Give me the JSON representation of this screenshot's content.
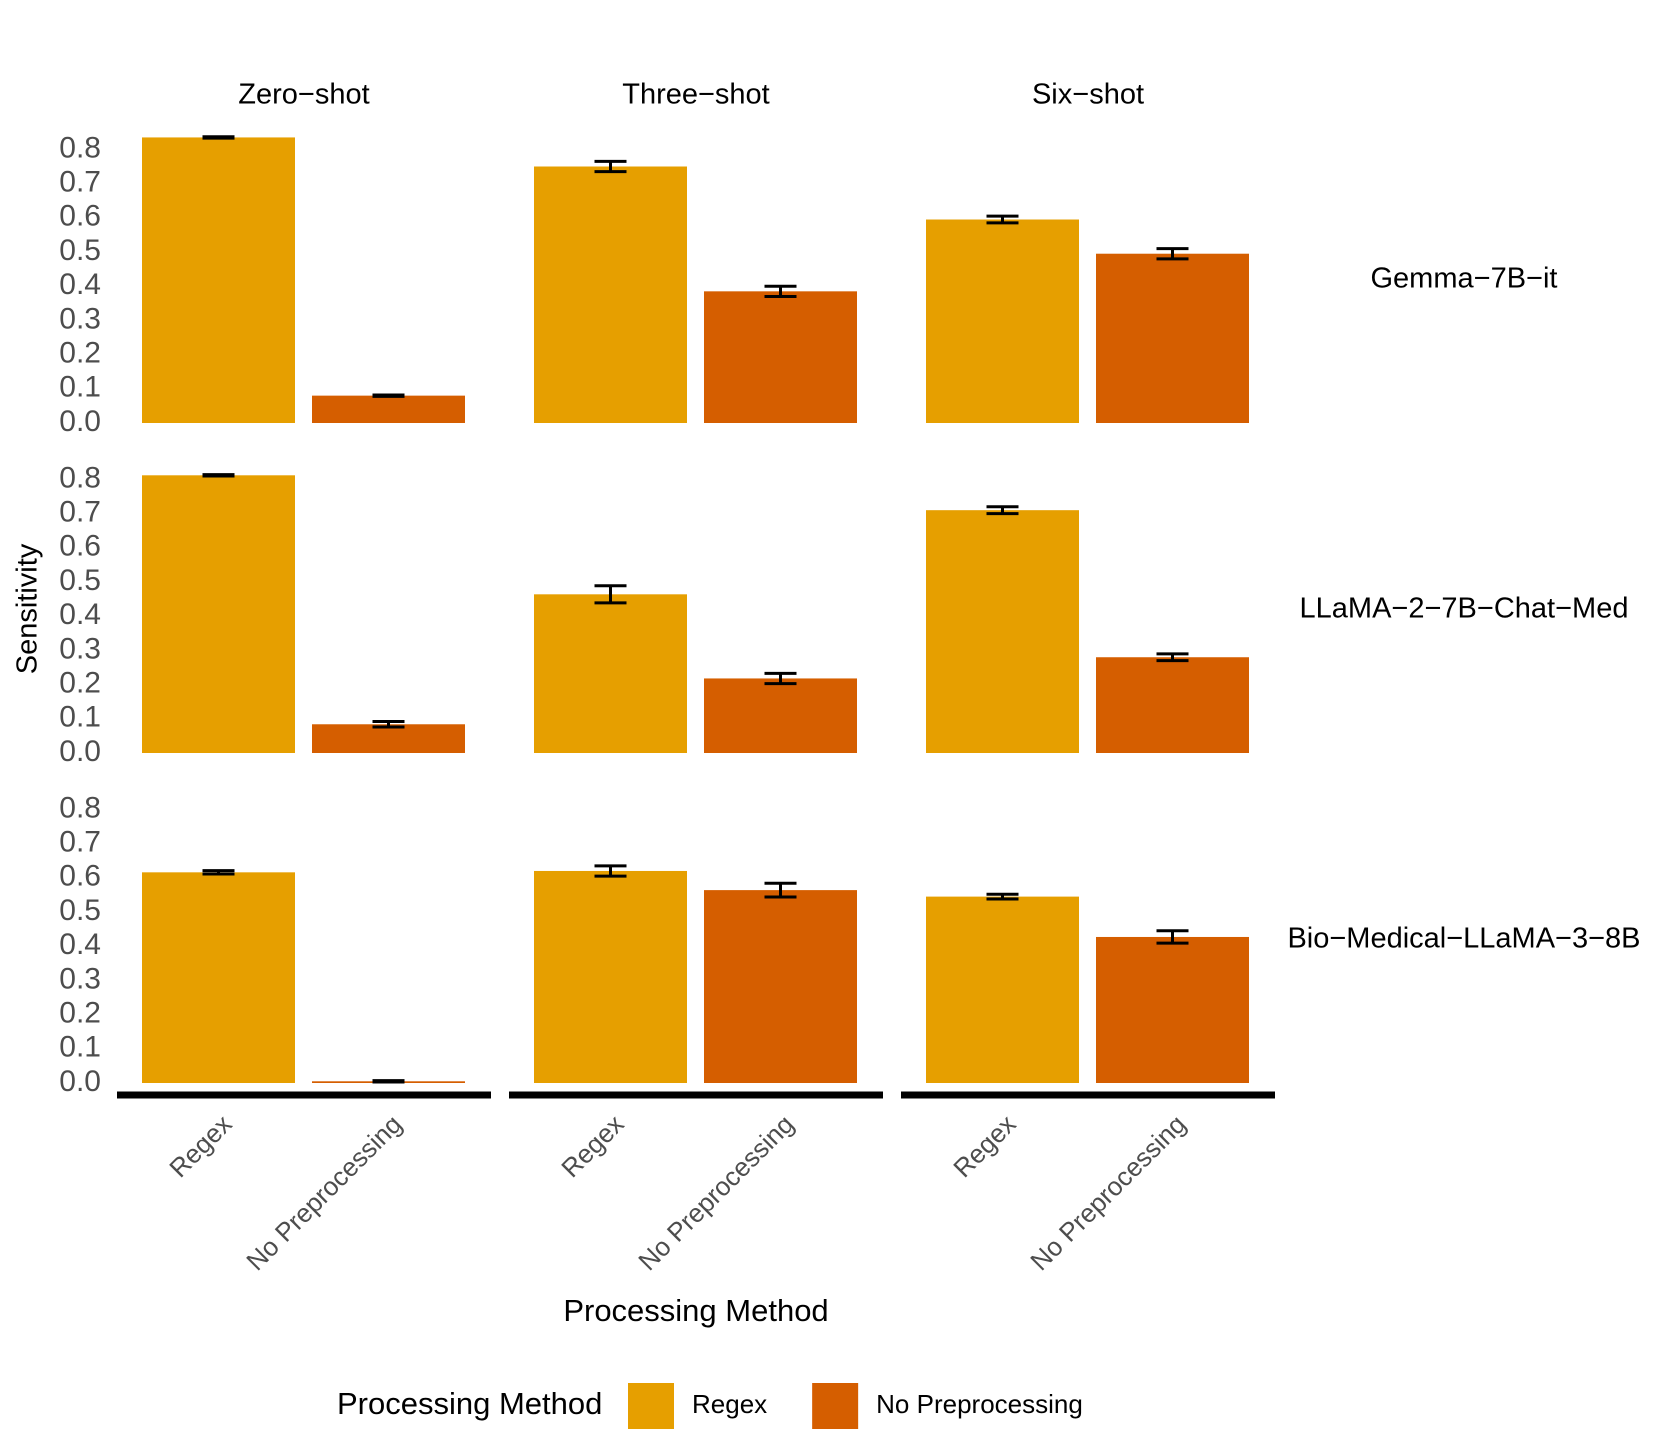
{
  "chart_data": {
    "type": "bar",
    "y_label": "Sensitivity",
    "x_label": "Processing Method",
    "legend_title": "Processing Method",
    "legend": "bottom",
    "facet_columns": [
      "Zero−shot",
      "Three−shot",
      "Six−shot"
    ],
    "facet_rows": [
      "Gemma−7B−it",
      "LLaMA−2−7B−Chat−Med",
      "Bio−Medical−LLaMA−3−8B"
    ],
    "categories": [
      "Regex",
      "No Preprocessing"
    ],
    "series": [
      {
        "name": "Regex",
        "color": "#E69F00",
        "values": [
          [
            0.835,
            0.75,
            0.595
          ],
          [
            0.812,
            0.464,
            0.71
          ],
          [
            0.616,
            0.62,
            0.545
          ]
        ],
        "errors": [
          [
            0.002,
            0.015,
            0.01
          ],
          [
            0.002,
            0.025,
            0.01
          ],
          [
            0.005,
            0.015,
            0.007
          ]
        ]
      },
      {
        "name": "No Preprocessing",
        "color": "#D55E00",
        "values": [
          [
            0.08,
            0.385,
            0.495
          ],
          [
            0.084,
            0.218,
            0.28
          ],
          [
            0.005,
            0.564,
            0.427
          ]
        ],
        "errors": [
          [
            0.002,
            0.015,
            0.015
          ],
          [
            0.008,
            0.015,
            0.01
          ],
          [
            0.002,
            0.02,
            0.018
          ]
        ]
      }
    ],
    "ylim": [
      0,
      0.86
    ],
    "yticks": [
      {
        "value": 0,
        "label": "0.0"
      },
      0.1,
      0.2,
      0.3,
      0.4,
      0.5,
      0.6,
      0.7,
      0.8
    ]
  }
}
